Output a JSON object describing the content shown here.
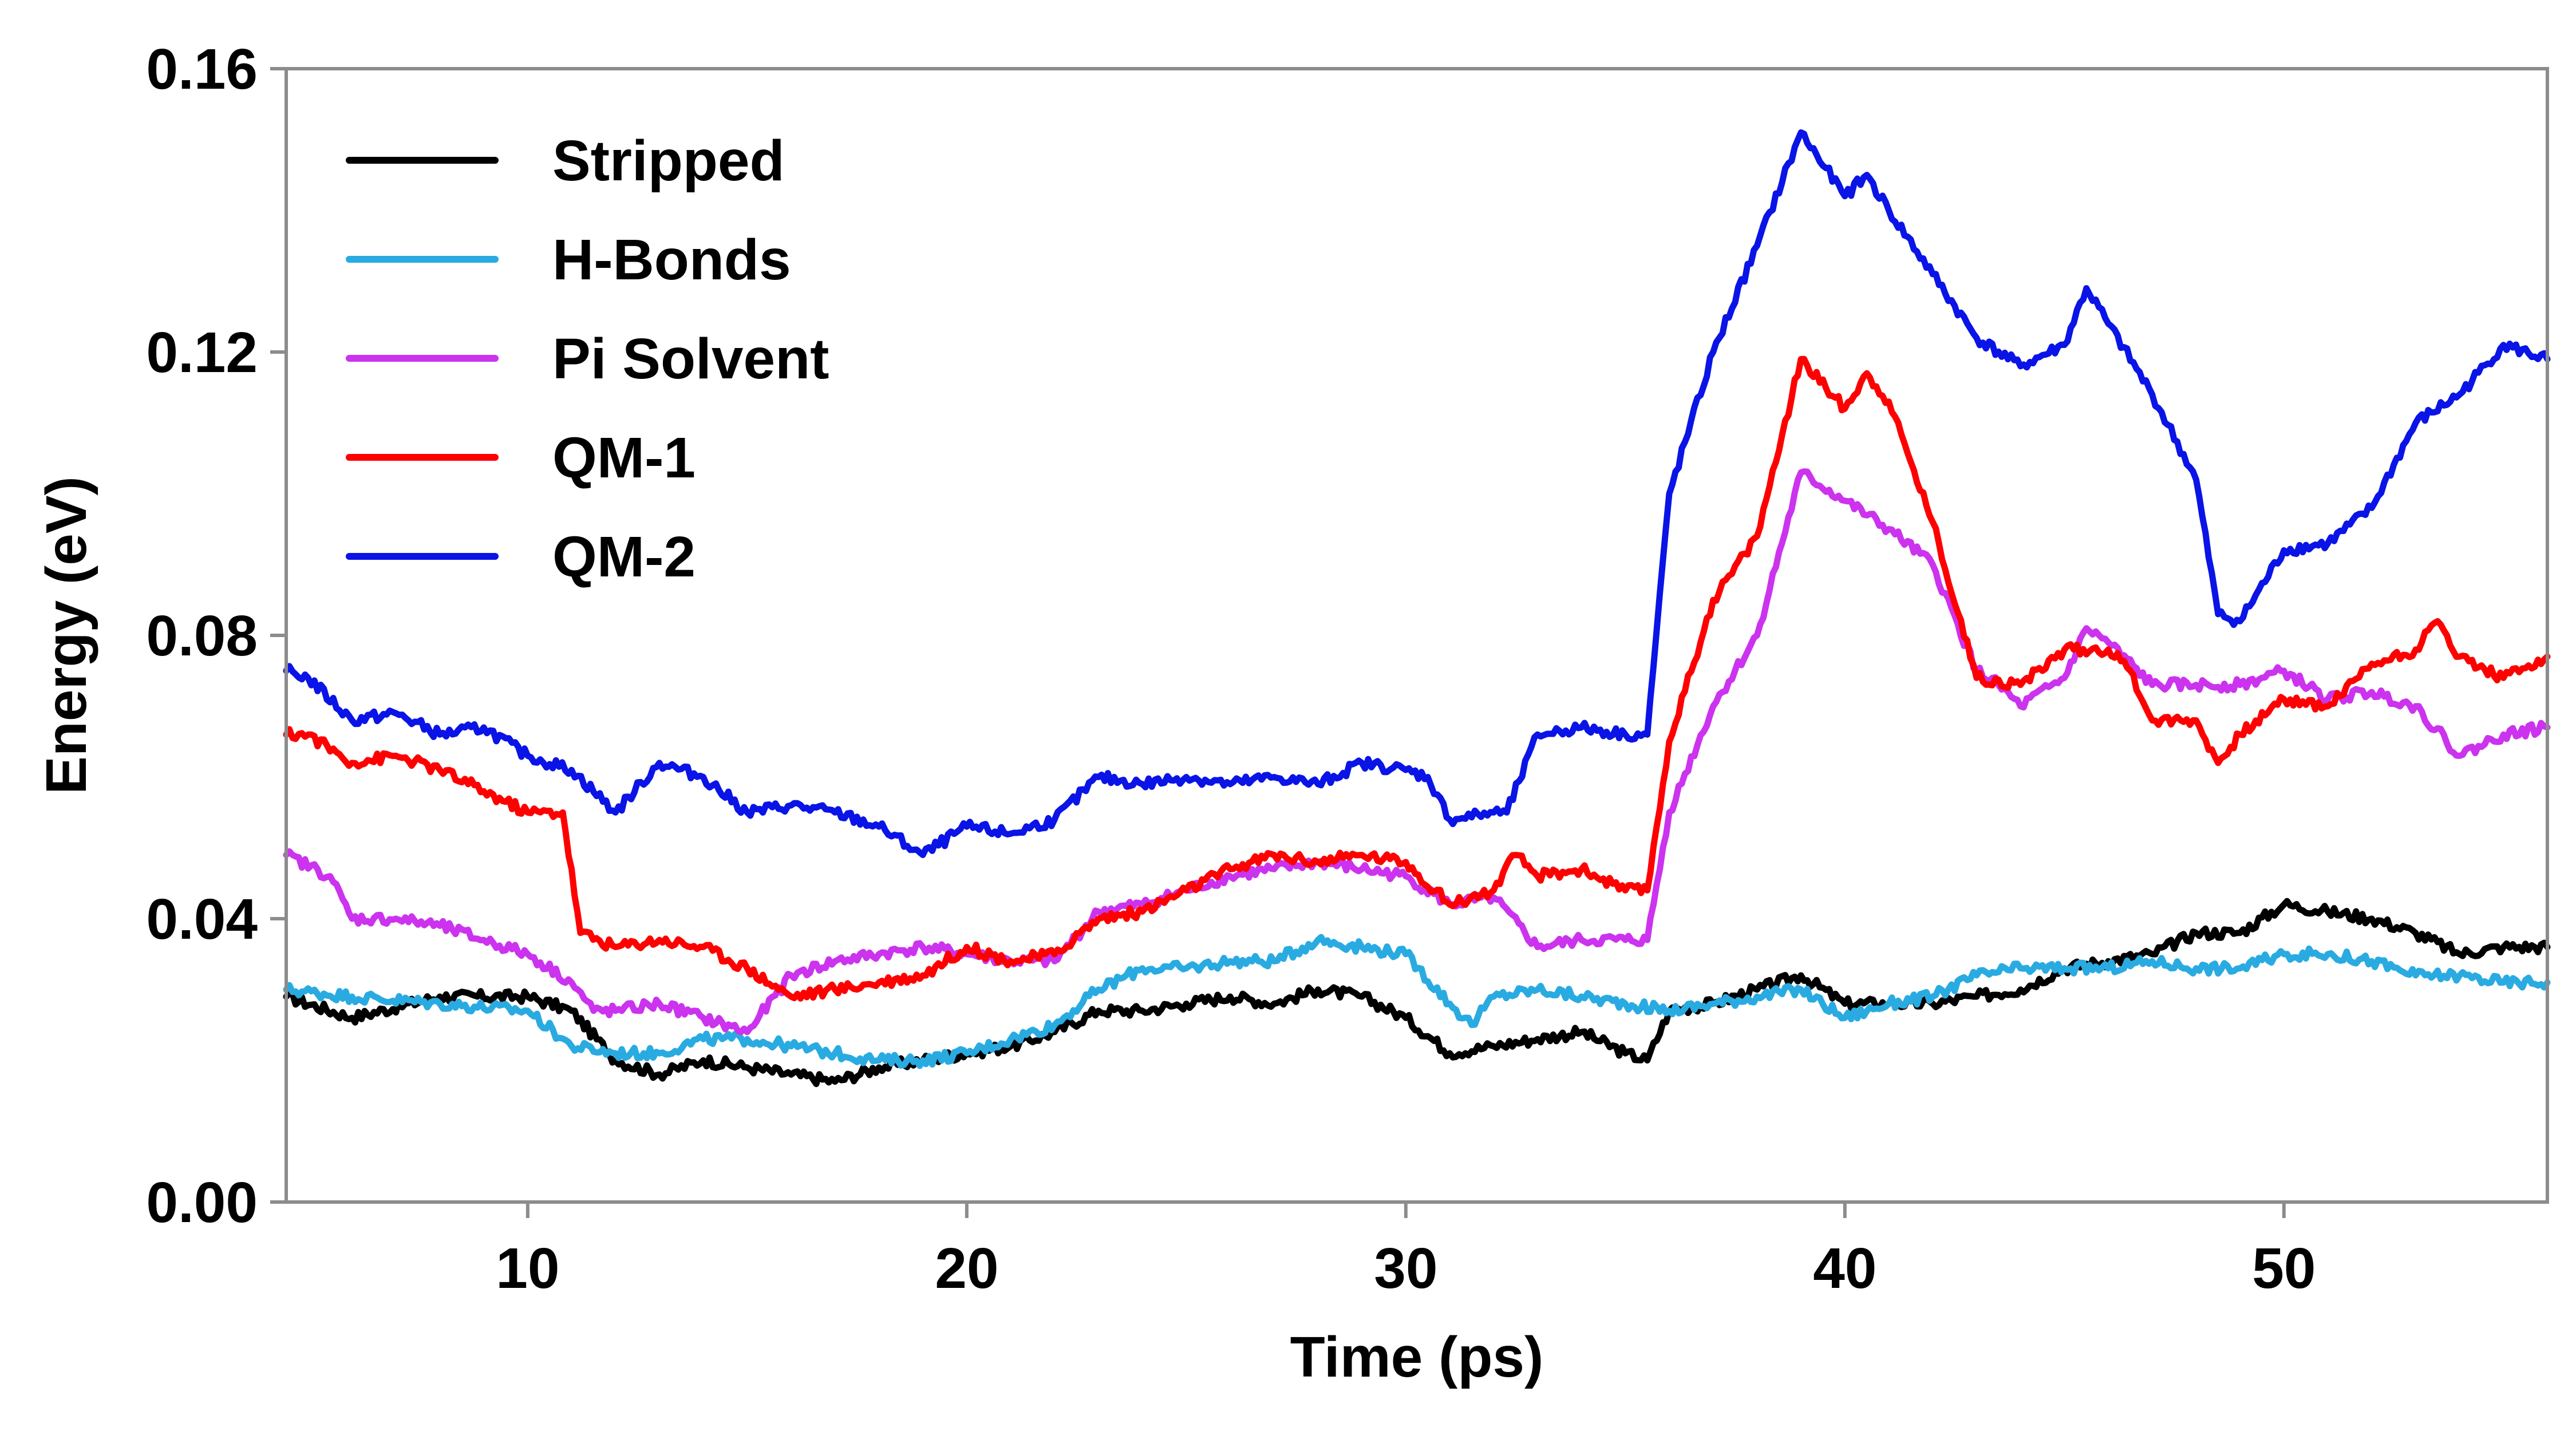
{
  "chart_data": {
    "type": "line",
    "title": "",
    "xlabel": "Time (ps)",
    "ylabel": "Energy (eV)",
    "xlim": [
      4.5,
      56
    ],
    "ylim": [
      0,
      0.16
    ],
    "xticks": [
      10,
      20,
      30,
      40,
      50
    ],
    "yticks": [
      0.0,
      0.04,
      0.08,
      0.12,
      0.16
    ],
    "ytick_labels": [
      "0.00",
      "0.04",
      "0.08",
      "0.12",
      "0.16"
    ],
    "xtick_labels": [
      "10",
      "20",
      "30",
      "40",
      "50"
    ],
    "legend_position": "top-left",
    "series": [
      {
        "name": "Stripped",
        "color": "#000000",
        "x": [
          4.5,
          6,
          8,
          10,
          11,
          12,
          13,
          14,
          15,
          16,
          17,
          18,
          19,
          20,
          21,
          22,
          23,
          24,
          25,
          26,
          27,
          28,
          29,
          30,
          31,
          32,
          33,
          34,
          35,
          35.5,
          36,
          37,
          38,
          39,
          40,
          41,
          42,
          43,
          44,
          45,
          46,
          47,
          48,
          49,
          50,
          51,
          52,
          53,
          54,
          55,
          56
        ],
        "y": [
          0.029,
          0.026,
          0.029,
          0.029,
          0.027,
          0.02,
          0.018,
          0.02,
          0.019,
          0.018,
          0.017,
          0.019,
          0.02,
          0.021,
          0.022,
          0.024,
          0.027,
          0.027,
          0.028,
          0.029,
          0.028,
          0.03,
          0.029,
          0.026,
          0.021,
          0.022,
          0.023,
          0.024,
          0.021,
          0.02,
          0.027,
          0.028,
          0.03,
          0.032,
          0.028,
          0.028,
          0.028,
          0.029,
          0.03,
          0.033,
          0.034,
          0.035,
          0.038,
          0.038,
          0.042,
          0.041,
          0.04,
          0.038,
          0.035,
          0.036,
          0.036
        ]
      },
      {
        "name": "H-Bonds",
        "color": "#29ABE2",
        "x": [
          4.5,
          6,
          8,
          10,
          11,
          12,
          13,
          14,
          15,
          16,
          17,
          18,
          19,
          20,
          21,
          22,
          23,
          24,
          25,
          26,
          27,
          28,
          29,
          30,
          31,
          31.5,
          32,
          33,
          34,
          35,
          36,
          37,
          38,
          39,
          40,
          41,
          42,
          43,
          44,
          45,
          46,
          47,
          48,
          49,
          50,
          51,
          52,
          53,
          54,
          55,
          56
        ],
        "y": [
          0.03,
          0.029,
          0.028,
          0.027,
          0.022,
          0.021,
          0.021,
          0.023,
          0.023,
          0.022,
          0.021,
          0.02,
          0.02,
          0.021,
          0.023,
          0.025,
          0.03,
          0.033,
          0.033,
          0.034,
          0.034,
          0.037,
          0.036,
          0.035,
          0.028,
          0.025,
          0.029,
          0.03,
          0.029,
          0.028,
          0.027,
          0.028,
          0.029,
          0.03,
          0.026,
          0.028,
          0.029,
          0.032,
          0.033,
          0.033,
          0.033,
          0.034,
          0.033,
          0.033,
          0.035,
          0.035,
          0.034,
          0.032,
          0.032,
          0.031,
          0.031
        ]
      },
      {
        "name": "Pi Solvent",
        "color": "#CC33EE",
        "x": [
          4.5,
          5.5,
          6,
          7,
          8,
          9,
          10,
          11,
          11.5,
          12,
          13,
          14,
          15,
          16,
          17,
          18,
          19,
          20,
          21,
          22,
          23,
          24,
          25,
          26,
          27,
          28,
          29,
          30,
          31,
          32,
          33,
          34,
          35,
          35.5,
          36,
          37,
          38,
          39,
          40,
          41,
          42,
          43,
          43.5,
          44,
          45,
          45.5,
          46,
          47,
          48,
          49,
          50,
          51,
          52,
          53,
          54,
          55,
          56
        ],
        "y": [
          0.049,
          0.046,
          0.04,
          0.04,
          0.039,
          0.037,
          0.035,
          0.031,
          0.027,
          0.027,
          0.028,
          0.026,
          0.024,
          0.032,
          0.034,
          0.035,
          0.036,
          0.035,
          0.034,
          0.034,
          0.041,
          0.042,
          0.044,
          0.046,
          0.047,
          0.048,
          0.047,
          0.046,
          0.042,
          0.043,
          0.036,
          0.037,
          0.037,
          0.037,
          0.055,
          0.07,
          0.08,
          0.103,
          0.099,
          0.095,
          0.09,
          0.075,
          0.073,
          0.07,
          0.074,
          0.081,
          0.079,
          0.073,
          0.073,
          0.073,
          0.075,
          0.071,
          0.072,
          0.07,
          0.063,
          0.066,
          0.067
        ]
      },
      {
        "name": "QM-1",
        "color": "#FF0000",
        "x": [
          4.5,
          5,
          6,
          7,
          8,
          9,
          10,
          10.8,
          11.2,
          12,
          13,
          14,
          15,
          16,
          17,
          18,
          19,
          20,
          21,
          22,
          23,
          24,
          25,
          26,
          27,
          28,
          29,
          30,
          31,
          32,
          32.5,
          33,
          34,
          35,
          35.5,
          36,
          37,
          38,
          39,
          40,
          40.5,
          41,
          42,
          43,
          44,
          45,
          46,
          46.5,
          47,
          48,
          48.5,
          49,
          50,
          51,
          52,
          53,
          53.5,
          54,
          55,
          56
        ],
        "y": [
          0.066,
          0.066,
          0.062,
          0.063,
          0.061,
          0.058,
          0.055,
          0.055,
          0.038,
          0.036,
          0.037,
          0.036,
          0.033,
          0.029,
          0.03,
          0.031,
          0.032,
          0.036,
          0.034,
          0.035,
          0.04,
          0.041,
          0.044,
          0.047,
          0.049,
          0.048,
          0.049,
          0.048,
          0.042,
          0.044,
          0.049,
          0.046,
          0.047,
          0.044,
          0.044,
          0.065,
          0.085,
          0.094,
          0.119,
          0.112,
          0.117,
          0.113,
          0.096,
          0.074,
          0.073,
          0.078,
          0.078,
          0.075,
          0.068,
          0.068,
          0.062,
          0.066,
          0.071,
          0.07,
          0.076,
          0.078,
          0.082,
          0.077,
          0.074,
          0.077
        ]
      },
      {
        "name": "QM-2",
        "color": "#0A14E6",
        "x": [
          4.5,
          5,
          6,
          7,
          8,
          9,
          10,
          11,
          12,
          13,
          14,
          15,
          16,
          17,
          18,
          19,
          20,
          21,
          22,
          23,
          24,
          25,
          26,
          27,
          28,
          29,
          30,
          30.5,
          31,
          32,
          32.3,
          33,
          34,
          35,
          35.5,
          36,
          37,
          38,
          39,
          40,
          40.5,
          41,
          42,
          43,
          44,
          45,
          45.5,
          46,
          47,
          48,
          48.5,
          49,
          50,
          51,
          52,
          53,
          54,
          55,
          56
        ],
        "y": [
          0.075,
          0.074,
          0.068,
          0.069,
          0.066,
          0.067,
          0.063,
          0.061,
          0.055,
          0.062,
          0.06,
          0.055,
          0.056,
          0.055,
          0.053,
          0.049,
          0.053,
          0.052,
          0.054,
          0.06,
          0.059,
          0.06,
          0.059,
          0.06,
          0.059,
          0.062,
          0.061,
          0.06,
          0.054,
          0.055,
          0.055,
          0.066,
          0.067,
          0.066,
          0.066,
          0.1,
          0.12,
          0.135,
          0.151,
          0.142,
          0.145,
          0.14,
          0.131,
          0.122,
          0.118,
          0.121,
          0.129,
          0.124,
          0.114,
          0.102,
          0.083,
          0.082,
          0.092,
          0.093,
          0.098,
          0.11,
          0.114,
          0.121,
          0.119
        ]
      }
    ]
  }
}
